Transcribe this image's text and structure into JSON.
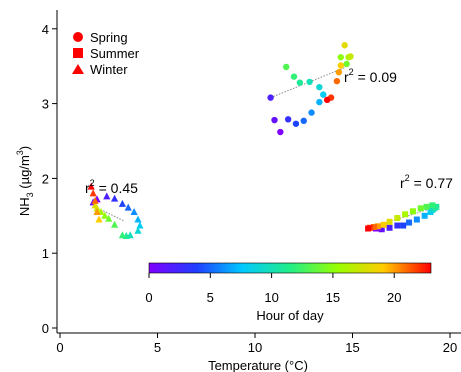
{
  "chart_data": {
    "type": "scatter",
    "xlabel": "Temperature (°C)",
    "ylabel": {
      "base": "NH",
      "sub": "3",
      "unit_open": " (µg/m",
      "sup": "3",
      "unit_close": ")"
    },
    "xlim": [
      -1,
      21
    ],
    "ylim": [
      0,
      4.15
    ],
    "xticks": [
      0,
      5,
      10,
      15,
      20
    ],
    "yticks": [
      0,
      1,
      2,
      3,
      4
    ],
    "legend": {
      "position": "top-left",
      "entries": [
        {
          "label": "Spring",
          "marker": "circle"
        },
        {
          "label": "Summer",
          "marker": "square"
        },
        {
          "label": "Winter",
          "marker": "triangle"
        }
      ]
    },
    "colorbar": {
      "label": "Hour of day",
      "range": [
        0,
        23
      ],
      "ticks": [
        0,
        5,
        10,
        15,
        20
      ],
      "colormap": "rainbow"
    },
    "series": [
      {
        "name": "Spring",
        "marker": "circle",
        "r2": "0.09",
        "fit": {
          "x": [
            10.8,
            14.6
          ],
          "y": [
            3.08,
            3.48
          ]
        },
        "points": [
          {
            "hour": 0,
            "x": 11.3,
            "y": 2.62
          },
          {
            "hour": 1,
            "x": 11.0,
            "y": 2.78
          },
          {
            "hour": 2,
            "x": 10.8,
            "y": 3.08
          },
          {
            "hour": 3,
            "x": 11.7,
            "y": 2.79
          },
          {
            "hour": 4,
            "x": 12.1,
            "y": 2.73
          },
          {
            "hour": 5,
            "x": 12.5,
            "y": 2.77
          },
          {
            "hour": 6,
            "x": 12.9,
            "y": 2.88
          },
          {
            "hour": 7,
            "x": 13.3,
            "y": 3.02
          },
          {
            "hour": 8,
            "x": 13.5,
            "y": 3.12
          },
          {
            "hour": 9,
            "x": 13.3,
            "y": 3.22
          },
          {
            "hour": 10,
            "x": 12.8,
            "y": 3.29
          },
          {
            "hour": 11,
            "x": 12.3,
            "y": 3.28
          },
          {
            "hour": 12,
            "x": 12.0,
            "y": 3.36
          },
          {
            "hour": 13,
            "x": 11.6,
            "y": 3.49
          },
          {
            "hour": 14,
            "x": 14.7,
            "y": 3.53
          },
          {
            "hour": 15,
            "x": 14.4,
            "y": 3.62
          },
          {
            "hour": 16,
            "x": 14.8,
            "y": 3.62
          },
          {
            "hour": 17,
            "x": 14.9,
            "y": 3.63
          },
          {
            "hour": 18,
            "x": 14.6,
            "y": 3.78
          },
          {
            "hour": 19,
            "x": 14.4,
            "y": 3.51
          },
          {
            "hour": 20,
            "x": 14.3,
            "y": 3.42
          },
          {
            "hour": 21,
            "x": 14.2,
            "y": 3.3
          },
          {
            "hour": 22,
            "x": 13.9,
            "y": 3.08
          },
          {
            "hour": 23,
            "x": 13.7,
            "y": 3.05
          }
        ]
      },
      {
        "name": "Summer",
        "marker": "square",
        "r2": "0.77",
        "fit": {
          "x": [
            15.8,
            19.3
          ],
          "y": [
            1.33,
            1.62
          ]
        },
        "points": [
          {
            "hour": 0,
            "x": 16.2,
            "y": 1.33
          },
          {
            "hour": 1,
            "x": 16.5,
            "y": 1.32
          },
          {
            "hour": 2,
            "x": 16.9,
            "y": 1.34
          },
          {
            "hour": 3,
            "x": 17.3,
            "y": 1.37
          },
          {
            "hour": 4,
            "x": 17.6,
            "y": 1.37
          },
          {
            "hour": 5,
            "x": 17.9,
            "y": 1.41
          },
          {
            "hour": 6,
            "x": 18.3,
            "y": 1.45
          },
          {
            "hour": 7,
            "x": 18.7,
            "y": 1.5
          },
          {
            "hour": 8,
            "x": 19.0,
            "y": 1.55
          },
          {
            "hour": 9,
            "x": 19.1,
            "y": 1.58
          },
          {
            "hour": 10,
            "x": 19.2,
            "y": 1.6
          },
          {
            "hour": 11,
            "x": 19.3,
            "y": 1.62
          },
          {
            "hour": 12,
            "x": 19.1,
            "y": 1.64
          },
          {
            "hour": 13,
            "x": 18.8,
            "y": 1.62
          },
          {
            "hour": 14,
            "x": 18.5,
            "y": 1.6
          },
          {
            "hour": 15,
            "x": 18.1,
            "y": 1.56
          },
          {
            "hour": 16,
            "x": 17.7,
            "y": 1.52
          },
          {
            "hour": 17,
            "x": 17.3,
            "y": 1.47
          },
          {
            "hour": 18,
            "x": 16.9,
            "y": 1.42
          },
          {
            "hour": 19,
            "x": 16.6,
            "y": 1.38
          },
          {
            "hour": 20,
            "x": 16.3,
            "y": 1.36
          },
          {
            "hour": 21,
            "x": 16.1,
            "y": 1.35
          },
          {
            "hour": 22,
            "x": 15.9,
            "y": 1.34
          },
          {
            "hour": 23,
            "x": 15.8,
            "y": 1.33
          }
        ]
      },
      {
        "name": "Winter",
        "marker": "triangle",
        "r2": "0.45",
        "fit": {
          "x": [
            1.8,
            3.3
          ],
          "y": [
            1.62,
            1.43
          ]
        },
        "points": [
          {
            "hour": 0,
            "x": 1.9,
            "y": 1.72
          },
          {
            "hour": 1,
            "x": 1.7,
            "y": 1.68
          },
          {
            "hour": 2,
            "x": 2.4,
            "y": 1.76
          },
          {
            "hour": 3,
            "x": 2.8,
            "y": 1.73
          },
          {
            "hour": 4,
            "x": 3.2,
            "y": 1.66
          },
          {
            "hour": 5,
            "x": 3.5,
            "y": 1.61
          },
          {
            "hour": 6,
            "x": 3.8,
            "y": 1.55
          },
          {
            "hour": 7,
            "x": 4.0,
            "y": 1.45
          },
          {
            "hour": 8,
            "x": 4.1,
            "y": 1.37
          },
          {
            "hour": 9,
            "x": 4.0,
            "y": 1.3
          },
          {
            "hour": 10,
            "x": 3.6,
            "y": 1.24
          },
          {
            "hour": 11,
            "x": 3.4,
            "y": 1.23
          },
          {
            "hour": 12,
            "x": 3.2,
            "y": 1.24
          },
          {
            "hour": 13,
            "x": 2.8,
            "y": 1.38
          },
          {
            "hour": 14,
            "x": 2.5,
            "y": 1.46
          },
          {
            "hour": 15,
            "x": 2.3,
            "y": 1.5
          },
          {
            "hour": 16,
            "x": 2.1,
            "y": 1.55
          },
          {
            "hour": 17,
            "x": 1.9,
            "y": 1.6
          },
          {
            "hour": 18,
            "x": 1.8,
            "y": 1.64
          },
          {
            "hour": 19,
            "x": 2.0,
            "y": 1.45
          },
          {
            "hour": 20,
            "x": 1.9,
            "y": 1.55
          },
          {
            "hour": 21,
            "x": 1.8,
            "y": 1.7
          },
          {
            "hour": 22,
            "x": 1.7,
            "y": 1.8
          },
          {
            "hour": 23,
            "x": 1.6,
            "y": 1.89
          }
        ]
      }
    ]
  }
}
